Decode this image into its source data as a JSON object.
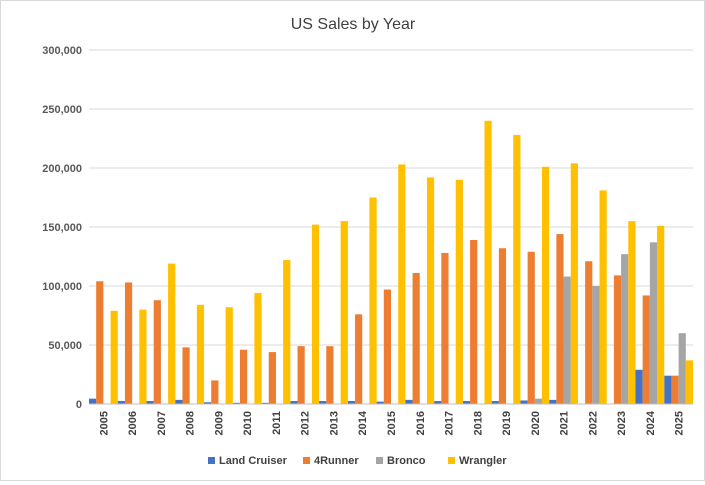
{
  "chart_data": {
    "type": "bar",
    "title": "US Sales by Year",
    "xlabel": "",
    "ylabel": "",
    "ylim": [
      0,
      300000
    ],
    "yticks": [
      0,
      50000,
      100000,
      150000,
      200000,
      250000,
      300000
    ],
    "ytick_labels": [
      "0",
      "50,000",
      "100,000",
      "150,000",
      "200,000",
      "250,000",
      "300,000"
    ],
    "grid": true,
    "legend_position": "bottom",
    "categories": [
      "2005",
      "2006",
      "2007",
      "2008",
      "2009",
      "2010",
      "2011",
      "2012",
      "2013",
      "2014",
      "2015",
      "2016",
      "2017",
      "2018",
      "2019",
      "2020",
      "2021",
      "2022",
      "2023",
      "2024",
      "2025"
    ],
    "series": [
      {
        "name": "Land Cruiser",
        "color": "#4472c4",
        "values": [
          4500,
          2500,
          2500,
          3500,
          1500,
          1000,
          1000,
          2500,
          2500,
          2500,
          2000,
          3500,
          2500,
          2500,
          2500,
          3000,
          3500,
          0,
          0,
          29000,
          24000
        ]
      },
      {
        "name": "4Runner",
        "color": "#ed7d31",
        "values": [
          104000,
          103000,
          88000,
          48000,
          20000,
          46000,
          44000,
          49000,
          49000,
          76000,
          97000,
          111000,
          128000,
          139000,
          132000,
          129000,
          144000,
          121000,
          109000,
          92000,
          24000
        ]
      },
      {
        "name": "Bronco",
        "color": "#a5a5a5",
        "values": [
          0,
          0,
          0,
          0,
          0,
          0,
          0,
          0,
          0,
          0,
          0,
          0,
          0,
          0,
          0,
          4500,
          108000,
          100000,
          127000,
          137000,
          60000
        ]
      },
      {
        "name": "Wrangler",
        "color": "#ffc000",
        "values": [
          79000,
          80000,
          119000,
          84000,
          82000,
          94000,
          122000,
          152000,
          155000,
          175000,
          203000,
          192000,
          190000,
          240000,
          228000,
          201000,
          204000,
          181000,
          155000,
          151000,
          37000
        ]
      }
    ]
  }
}
